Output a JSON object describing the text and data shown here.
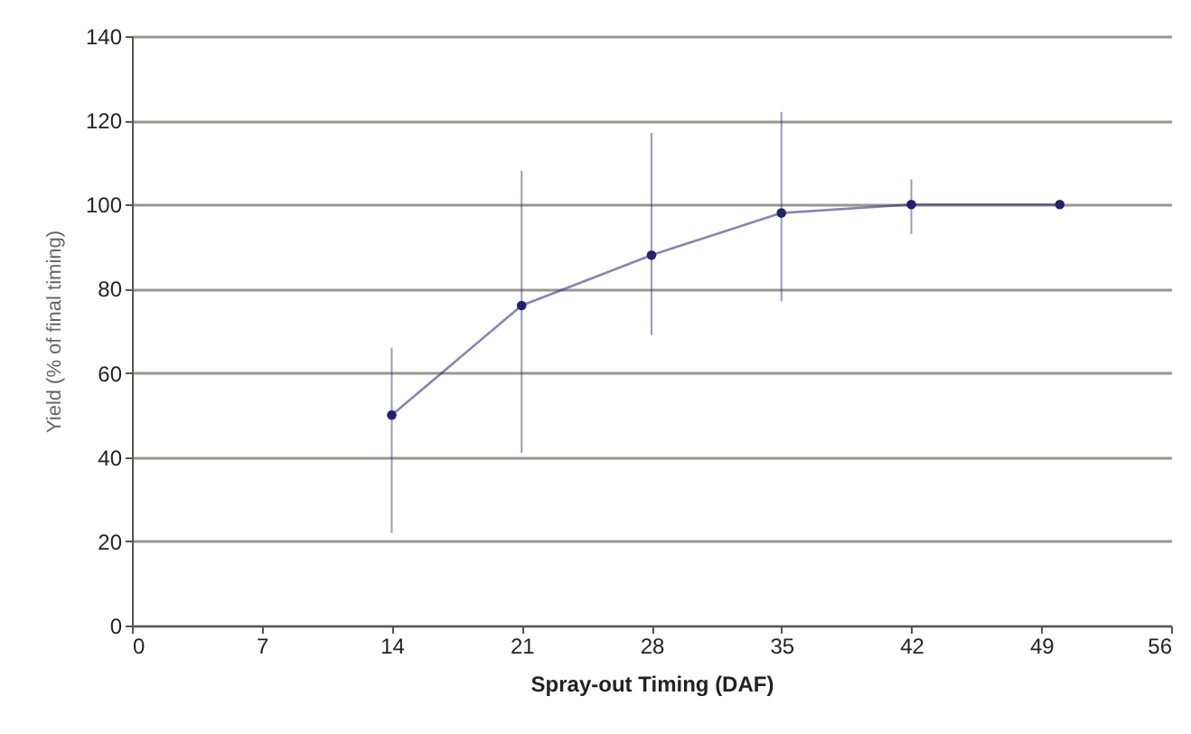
{
  "chart_data": {
    "type": "line",
    "xlabel": "Spray-out Timing (DAF)",
    "ylabel": "Yield (% of final timing)",
    "x": [
      14,
      21,
      28,
      35,
      42,
      50
    ],
    "series": [
      {
        "color": "#22226e",
        "values": [
          50,
          76,
          88,
          98,
          100,
          100
        ],
        "errors": [
          [
            22,
            66
          ],
          [
            41,
            108
          ],
          [
            69,
            117
          ],
          [
            77,
            122
          ],
          [
            93,
            106
          ],
          null
        ]
      }
    ],
    "xlim": [
      0,
      56
    ],
    "xticks": [
      0,
      7,
      14,
      21,
      28,
      35,
      42,
      49,
      56
    ],
    "ylim": [
      0,
      140
    ],
    "yticks": [
      0,
      20,
      40,
      60,
      80,
      100,
      120,
      140
    ],
    "grid": "y",
    "marker": "circle",
    "line_style": "solid"
  }
}
